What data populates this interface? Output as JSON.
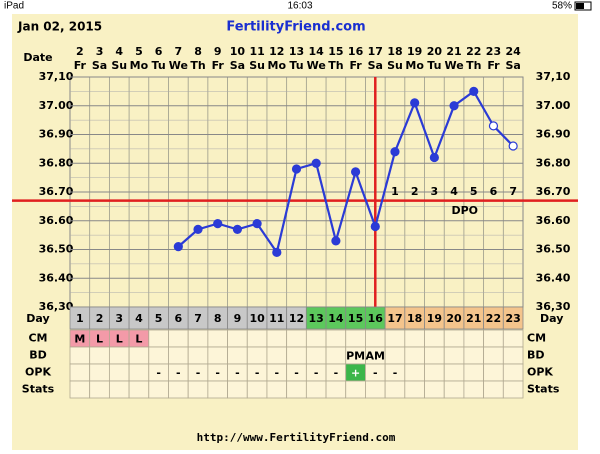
{
  "status_bar": {
    "device": "iPad",
    "time": "16:03",
    "battery": "58%"
  },
  "chart_data": {
    "type": "line",
    "date": "Jan 02, 2015",
    "title": "FertilityFriend.com",
    "x_label": "Date",
    "categories": [
      "2",
      "3",
      "4",
      "5",
      "6",
      "7",
      "8",
      "9",
      "10",
      "11",
      "12",
      "13",
      "14",
      "15",
      "16",
      "17",
      "18",
      "19",
      "20",
      "21",
      "22",
      "23",
      "24"
    ],
    "weekdays": [
      "Fr",
      "Sa",
      "Su",
      "Mo",
      "Tu",
      "We",
      "Th",
      "Fr",
      "Sa",
      "Su",
      "Mo",
      "Tu",
      "We",
      "Th",
      "Fr",
      "Sa",
      "Su",
      "Mo",
      "Tu",
      "We",
      "Th",
      "Fr",
      "Sa"
    ],
    "series": [
      {
        "color": "#2b3bd6",
        "values": [
          null,
          null,
          null,
          null,
          null,
          36.51,
          36.57,
          36.59,
          36.57,
          36.59,
          36.49,
          36.78,
          36.8,
          36.53,
          36.77,
          36.58,
          36.84,
          37.01,
          36.82,
          37.0,
          37.05,
          36.93,
          36.86
        ],
        "hollow": [
          false,
          false,
          false,
          false,
          false,
          false,
          false,
          false,
          false,
          false,
          false,
          false,
          false,
          false,
          false,
          false,
          false,
          false,
          false,
          false,
          false,
          true,
          true
        ]
      }
    ],
    "ylim": [
      36.3,
      37.1
    ],
    "yticks": [
      {
        "value": 36.3,
        "label": "36,30"
      },
      {
        "value": 36.4,
        "label": "36.40"
      },
      {
        "value": 36.5,
        "label": "36.50"
      },
      {
        "value": 36.6,
        "label": "36.60"
      },
      {
        "value": 36.7,
        "label": "36.70"
      },
      {
        "value": 36.8,
        "label": "36.80"
      },
      {
        "value": 36.9,
        "label": "36.90"
      },
      {
        "value": 37.0,
        "label": "37.00"
      },
      {
        "value": 37.1,
        "label": "37,10"
      }
    ],
    "grid": true,
    "coverline": 36.67,
    "line_color": "#e02020",
    "ovulation_date": "17",
    "dpo": {
      "label": "DPO",
      "start_date": "18",
      "days": [
        "1",
        "2",
        "3",
        "4",
        "5",
        "6",
        "7"
      ]
    },
    "table": {
      "day": {
        "label": "Day",
        "values": [
          1,
          2,
          3,
          4,
          5,
          6,
          7,
          8,
          9,
          10,
          11,
          12,
          13,
          14,
          15,
          16,
          17,
          18,
          19,
          20,
          21,
          22,
          23
        ],
        "colors": [
          "#c8c8c8",
          "#c8c8c8",
          "#c8c8c8",
          "#c8c8c8",
          "#c8c8c8",
          "#c8c8c8",
          "#c8c8c8",
          "#c8c8c8",
          "#c8c8c8",
          "#c8c8c8",
          "#c8c8c8",
          "#c8c8c8",
          "#5cc85c",
          "#5cc85c",
          "#5cc85c",
          "#5cc85c",
          "#f4c48c",
          "#f4c48c",
          "#f4c48c",
          "#f4c48c",
          "#f4c48c",
          "#f4c48c",
          "#f4c48c"
        ]
      },
      "rows": [
        {
          "label": "CM",
          "values": [
            "M",
            "L",
            "L",
            "L",
            null,
            null,
            null,
            null,
            null,
            null,
            null,
            null,
            null,
            null,
            null,
            null,
            null,
            null,
            null,
            null,
            null,
            null,
            null
          ],
          "color": "#f39aa8"
        },
        {
          "label": "BD",
          "values": [
            null,
            null,
            null,
            null,
            null,
            null,
            null,
            null,
            null,
            null,
            null,
            null,
            null,
            null,
            "PM",
            "AM",
            null,
            null,
            null,
            null,
            null,
            null,
            null
          ]
        },
        {
          "label": "OPK",
          "values": [
            null,
            null,
            null,
            null,
            "-",
            "-",
            "-",
            "-",
            "-",
            "-",
            "-",
            "-",
            "-",
            "-",
            "+",
            "-",
            "-",
            null,
            null,
            null,
            null,
            null,
            null
          ],
          "positive_color": "#3cb64a"
        },
        {
          "label": "Stats",
          "values": [
            null,
            null,
            null,
            null,
            null,
            null,
            null,
            null,
            null,
            null,
            null,
            null,
            null,
            null,
            null,
            null,
            null,
            null,
            null,
            null,
            null,
            null,
            null
          ]
        }
      ]
    },
    "footer": "http://www.FertilityFriend.com"
  }
}
